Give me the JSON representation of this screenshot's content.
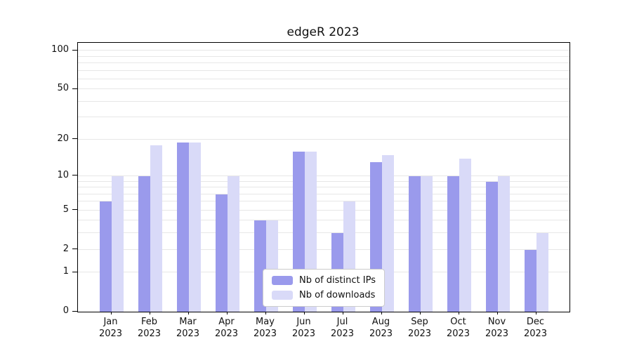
{
  "chart_data": {
    "type": "bar",
    "title": "edgeR 2023",
    "categories": [
      "Jan 2023",
      "Feb 2023",
      "Mar 2023",
      "Apr 2023",
      "May 2023",
      "Jun 2023",
      "Jul 2023",
      "Aug 2023",
      "Sep 2023",
      "Oct 2023",
      "Nov 2023",
      "Dec 2023"
    ],
    "series": [
      {
        "name": "Nb of distinct IPs",
        "color": "#9a9aec",
        "values": [
          6,
          10,
          19,
          7,
          4,
          16,
          3,
          13,
          10,
          10,
          9,
          2
        ]
      },
      {
        "name": "Nb of downloads",
        "color": "#d9daf8",
        "values": [
          10,
          18,
          19,
          10,
          4,
          16,
          6,
          15,
          10,
          14,
          10,
          3
        ]
      }
    ],
    "xlabel": "",
    "ylabel": "",
    "yscale": "log10(1+x)",
    "ylim_top": 115,
    "y_ticks": [
      0,
      1,
      2,
      5,
      10,
      20,
      50,
      100
    ],
    "y_minor_grid": [
      1,
      2,
      3,
      4,
      5,
      6,
      7,
      8,
      9,
      10,
      20,
      30,
      40,
      50,
      60,
      70,
      80,
      90,
      100
    ],
    "grid": true,
    "legend_position": "lower center"
  }
}
